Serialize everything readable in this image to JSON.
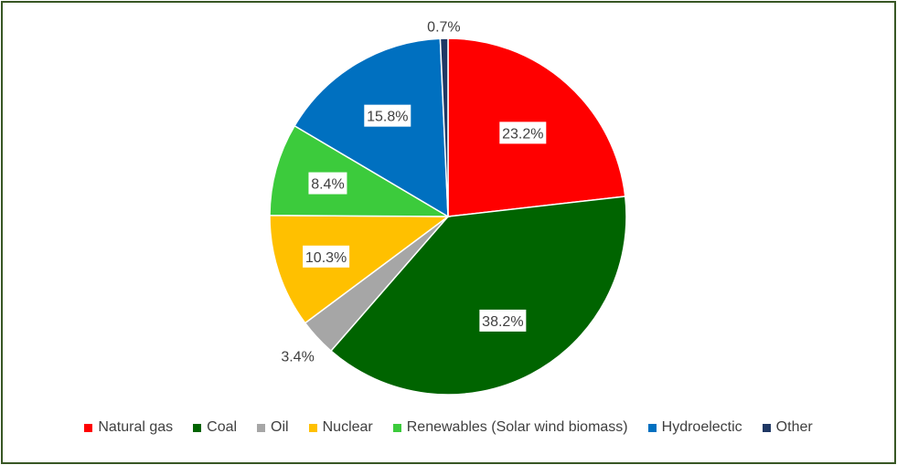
{
  "chart_data": {
    "type": "pie",
    "start_angle_deg": 0,
    "direction": "clockwise",
    "slices": [
      {
        "name": "Natural gas",
        "value": 23.2,
        "label": "23.2%",
        "color": "#FF0000",
        "label_boxed": true
      },
      {
        "name": "Coal",
        "value": 38.2,
        "label": "38.2%",
        "color": "#006400",
        "label_boxed": true
      },
      {
        "name": "Oil",
        "value": 3.4,
        "label": "3.4%",
        "color": "#A6A6A6",
        "label_boxed": false
      },
      {
        "name": "Nuclear",
        "value": 10.3,
        "label": "10.3%",
        "color": "#FFC000",
        "label_boxed": true
      },
      {
        "name": "Renewables (Solar wind biomass)",
        "value": 8.4,
        "label": "8.4%",
        "color": "#3CCB3C",
        "label_boxed": true
      },
      {
        "name": "Hydroelectic",
        "value": 15.8,
        "label": "15.8%",
        "color": "#0070C0",
        "label_boxed": true
      },
      {
        "name": "Other",
        "value": 0.7,
        "label": "0.7%",
        "color": "#1F3864",
        "label_boxed": false
      }
    ],
    "legend_position": "bottom"
  }
}
